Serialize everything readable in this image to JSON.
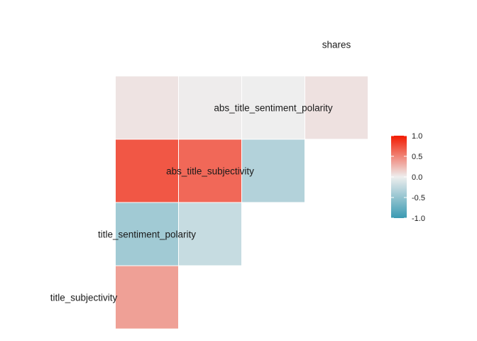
{
  "chart_data": {
    "type": "heatmap",
    "variables": [
      "title_subjectivity",
      "title_sentiment_polarity",
      "abs_title_subjectivity",
      "abs_title_sentiment_polarity",
      "shares"
    ],
    "cells": [
      {
        "row": "title_sentiment_polarity",
        "col": "title_subjectivity",
        "value": 0.37
      },
      {
        "row": "abs_title_subjectivity",
        "col": "title_subjectivity",
        "value": -0.43
      },
      {
        "row": "abs_title_subjectivity",
        "col": "title_sentiment_polarity",
        "value": -0.22
      },
      {
        "row": "abs_title_sentiment_polarity",
        "col": "title_subjectivity",
        "value": 0.71
      },
      {
        "row": "abs_title_sentiment_polarity",
        "col": "title_sentiment_polarity",
        "value": 0.63
      },
      {
        "row": "abs_title_sentiment_polarity",
        "col": "abs_title_subjectivity",
        "value": -0.33
      },
      {
        "row": "shares",
        "col": "title_subjectivity",
        "value": 0.05
      },
      {
        "row": "shares",
        "col": "title_sentiment_polarity",
        "value": 0.01
      },
      {
        "row": "shares",
        "col": "abs_title_subjectivity",
        "value": 0.0
      },
      {
        "row": "shares",
        "col": "abs_title_sentiment_polarity",
        "value": 0.06
      }
    ],
    "legend": {
      "position": "right",
      "range": [
        -1.0,
        1.0
      ],
      "ticks": [
        "1.0",
        "0.5",
        "0.0",
        "-0.5",
        "-1.0"
      ],
      "colors": {
        "low": "#3A9AB2",
        "mid": "#EEEEEE",
        "high": "#F21A00"
      }
    }
  }
}
